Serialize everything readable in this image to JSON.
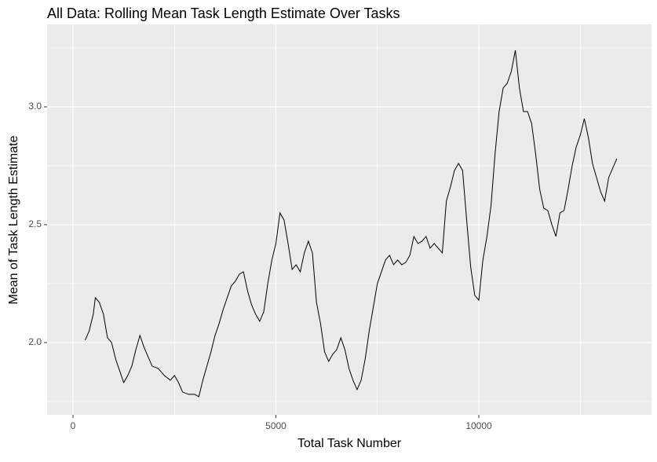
{
  "chart_data": {
    "type": "line",
    "title": "All Data: Rolling Mean Task Length Estimate Over Tasks",
    "x_label": "Total Task Number",
    "y_label": "Mean of Task Length Estimate",
    "x": [
      300,
      400,
      500,
      550,
      650,
      750,
      850,
      950,
      1050,
      1150,
      1250,
      1350,
      1450,
      1550,
      1650,
      1750,
      1850,
      1950,
      2100,
      2250,
      2400,
      2500,
      2600,
      2700,
      2850,
      3000,
      3100,
      3200,
      3300,
      3400,
      3500,
      3600,
      3700,
      3800,
      3900,
      4000,
      4100,
      4200,
      4300,
      4400,
      4500,
      4600,
      4700,
      4800,
      4900,
      5000,
      5100,
      5200,
      5300,
      5400,
      5500,
      5600,
      5700,
      5800,
      5900,
      6000,
      6100,
      6200,
      6300,
      6400,
      6500,
      6600,
      6700,
      6800,
      6900,
      7000,
      7100,
      7200,
      7300,
      7400,
      7500,
      7600,
      7700,
      7800,
      7900,
      8000,
      8100,
      8200,
      8300,
      8400,
      8500,
      8600,
      8700,
      8800,
      8900,
      9000,
      9100,
      9200,
      9300,
      9400,
      9500,
      9600,
      9700,
      9800,
      9900,
      10000,
      10100,
      10200,
      10300,
      10400,
      10500,
      10600,
      10700,
      10800,
      10900,
      11000,
      11100,
      11200,
      11300,
      11400,
      11500,
      11600,
      11700,
      11800,
      11900,
      12000,
      12100,
      12200,
      12300,
      12400,
      12500,
      12600,
      12700,
      12800,
      12900,
      13000,
      13100,
      13200,
      13300,
      13400
    ],
    "series": [
      {
        "color": "#000000",
        "values": [
          2.01,
          2.05,
          2.12,
          2.19,
          2.17,
          2.12,
          2.02,
          2.0,
          1.93,
          1.88,
          1.83,
          1.86,
          1.9,
          1.97,
          2.03,
          1.98,
          1.94,
          1.9,
          1.89,
          1.86,
          1.84,
          1.86,
          1.83,
          1.79,
          1.78,
          1.78,
          1.77,
          1.84,
          1.9,
          1.96,
          2.03,
          2.08,
          2.14,
          2.19,
          2.24,
          2.26,
          2.29,
          2.3,
          2.22,
          2.16,
          2.12,
          2.09,
          2.13,
          2.25,
          2.35,
          2.42,
          2.55,
          2.52,
          2.42,
          2.31,
          2.33,
          2.3,
          2.38,
          2.43,
          2.38,
          2.17,
          2.08,
          1.96,
          1.92,
          1.95,
          1.97,
          2.02,
          1.97,
          1.89,
          1.84,
          1.8,
          1.84,
          1.93,
          2.05,
          2.15,
          2.25,
          2.3,
          2.35,
          2.37,
          2.33,
          2.35,
          2.33,
          2.34,
          2.37,
          2.45,
          2.42,
          2.43,
          2.45,
          2.4,
          2.42,
          2.4,
          2.38,
          2.6,
          2.66,
          2.73,
          2.76,
          2.73,
          2.52,
          2.32,
          2.2,
          2.18,
          2.35,
          2.45,
          2.58,
          2.8,
          2.98,
          3.08,
          3.1,
          3.15,
          3.24,
          3.08,
          2.98,
          2.98,
          2.93,
          2.8,
          2.65,
          2.57,
          2.56,
          2.5,
          2.45,
          2.55,
          2.56,
          2.65,
          2.75,
          2.83,
          2.88,
          2.95,
          2.87,
          2.76,
          2.7,
          2.64,
          2.6,
          2.7,
          2.74,
          2.78
        ]
      }
    ],
    "xlim": [
      -638,
      14255
    ],
    "ylim": [
      1.693,
      3.35
    ],
    "xticks": [
      0,
      5000,
      10000
    ],
    "yticks": [
      {
        "value": 2.0,
        "label": "2.0"
      },
      {
        "value": 2.5,
        "label": "2.5"
      },
      {
        "value": 3.0,
        "label": "3.0"
      }
    ],
    "grid": true,
    "panel_color": "#ebebeb"
  }
}
